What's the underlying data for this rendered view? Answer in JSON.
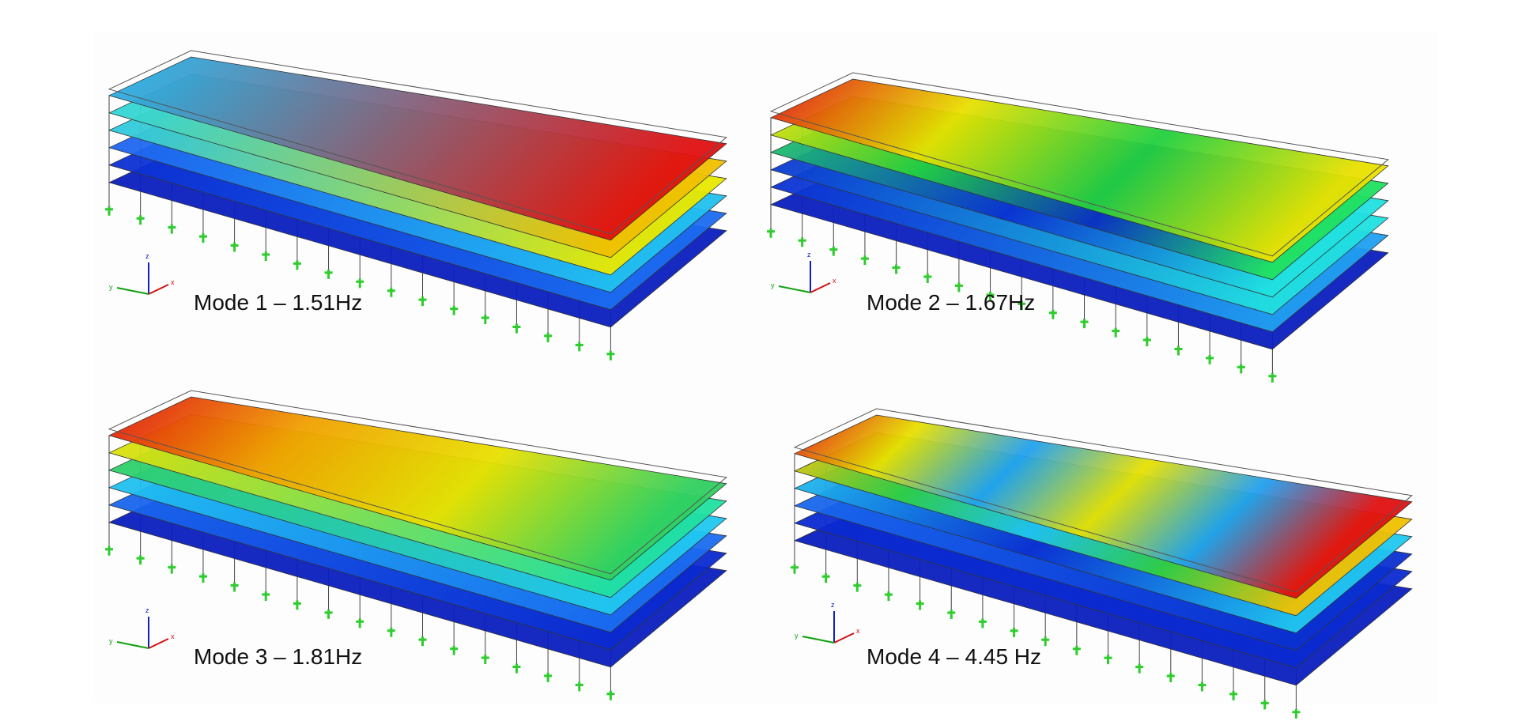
{
  "panels": [
    {
      "caption": "Mode 1 – 1.51Hz",
      "axes": {
        "z": "z",
        "y": "y",
        "x": "x"
      }
    },
    {
      "caption": "Mode 2 – 1.67Hz",
      "axes": {
        "z": "z",
        "y": "y",
        "x": "x"
      }
    },
    {
      "caption": "Mode 3 – 1.81Hz",
      "axes": {
        "z": "z",
        "y": "y",
        "x": "x"
      }
    },
    {
      "caption": "Mode 4 – 4.45 Hz",
      "axes": {
        "z": "z",
        "y": "y",
        "x": "x"
      }
    }
  ]
}
